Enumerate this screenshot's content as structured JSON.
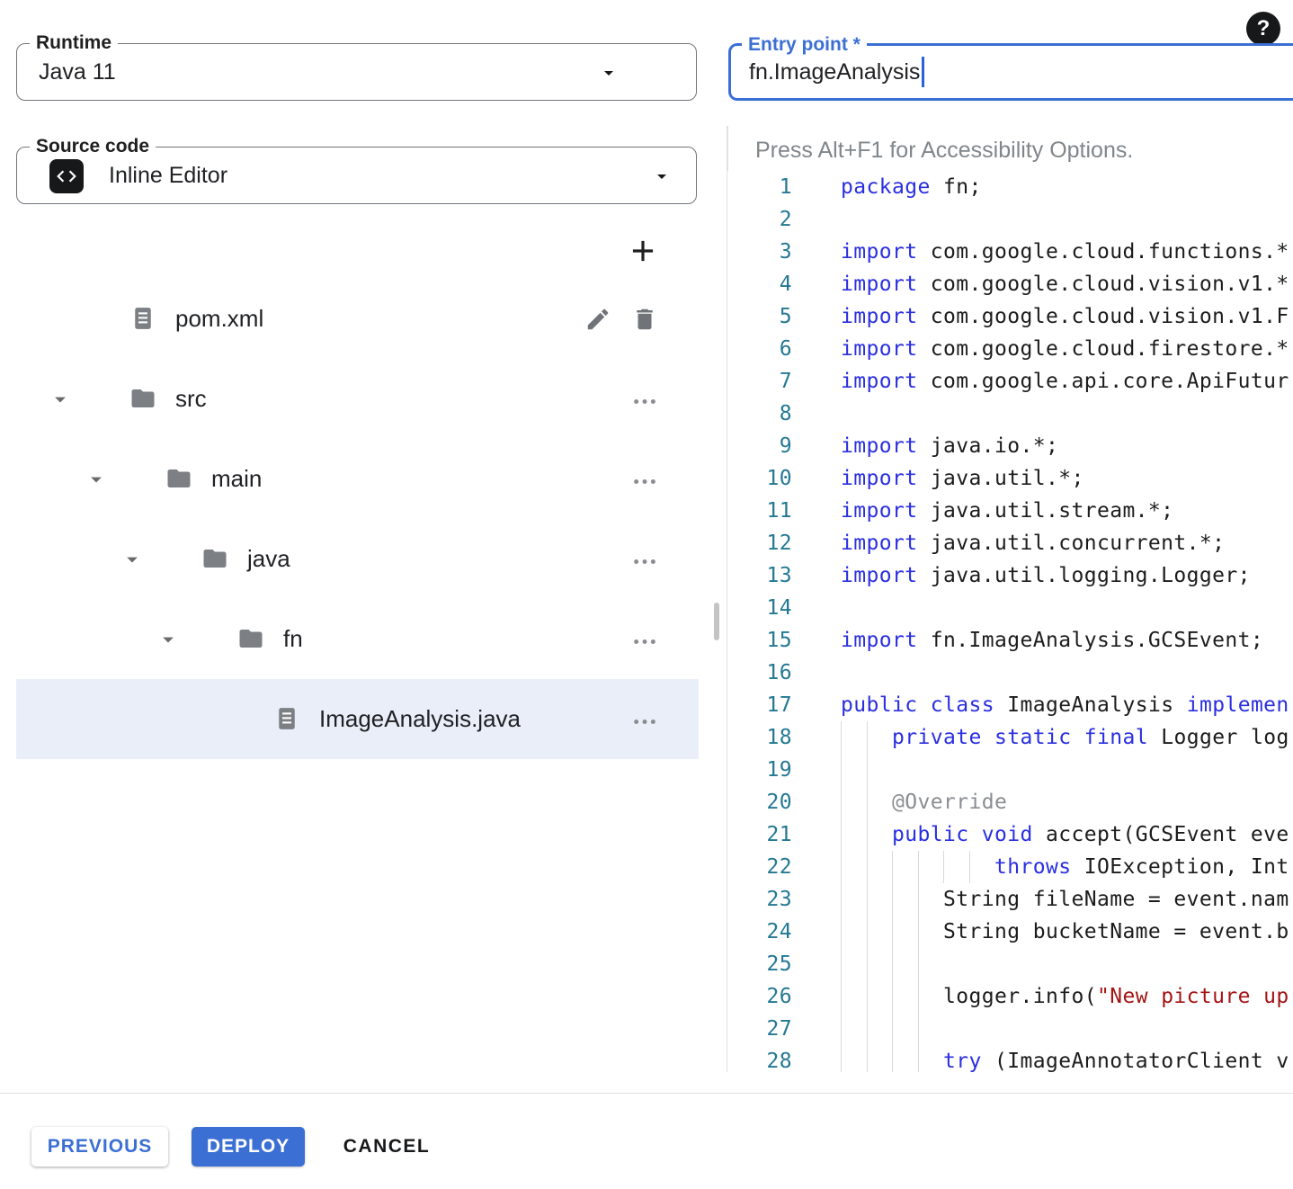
{
  "accent_color": "#3c6fd4",
  "runtime_field": {
    "label": "Runtime",
    "value": "Java 11"
  },
  "source_field": {
    "label": "Source code",
    "value": "Inline Editor"
  },
  "entry_point_field": {
    "label": "Entry point *",
    "value": "fn.ImageAnalysis"
  },
  "file_tree": {
    "items": [
      {
        "label": "pom.xml",
        "icon": "file-icon",
        "level": 0,
        "expanded": false,
        "actions": [
          "edit-pencil-icon",
          "delete-trash-icon"
        ],
        "selected": false
      },
      {
        "label": "src",
        "icon": "folder-icon",
        "level": 0,
        "expanded": true,
        "actions": [
          "more-options-icon"
        ],
        "selected": false
      },
      {
        "label": "main",
        "icon": "folder-icon",
        "level": 1,
        "expanded": true,
        "actions": [
          "more-options-icon"
        ],
        "selected": false
      },
      {
        "label": "java",
        "icon": "folder-icon",
        "level": 2,
        "expanded": true,
        "actions": [
          "more-options-icon"
        ],
        "selected": false
      },
      {
        "label": "fn",
        "icon": "folder-icon",
        "level": 3,
        "expanded": true,
        "actions": [
          "more-options-icon"
        ],
        "selected": false
      },
      {
        "label": "ImageAnalysis.java",
        "icon": "file-icon",
        "level": 4,
        "expanded": false,
        "actions": [
          "more-options-icon"
        ],
        "selected": true
      }
    ]
  },
  "editor": {
    "hint": "Press Alt+F1 for Accessibility Options.",
    "line_number_color": "#237893",
    "keyword_color": "#2a2fe0",
    "string_color": "#a31515",
    "lines": [
      {
        "n": 1,
        "segs": [
          [
            "k",
            "package"
          ],
          [
            "t",
            " fn;"
          ]
        ]
      },
      {
        "n": 2,
        "segs": []
      },
      {
        "n": 3,
        "segs": [
          [
            "k",
            "import"
          ],
          [
            "t",
            " com.google.cloud.functions.*"
          ]
        ]
      },
      {
        "n": 4,
        "segs": [
          [
            "k",
            "import"
          ],
          [
            "t",
            " com.google.cloud.vision.v1.*"
          ]
        ]
      },
      {
        "n": 5,
        "segs": [
          [
            "k",
            "import"
          ],
          [
            "t",
            " com.google.cloud.vision.v1.F"
          ]
        ]
      },
      {
        "n": 6,
        "segs": [
          [
            "k",
            "import"
          ],
          [
            "t",
            " com.google.cloud.firestore.*"
          ]
        ]
      },
      {
        "n": 7,
        "segs": [
          [
            "k",
            "import"
          ],
          [
            "t",
            " com.google.api.core.ApiFutur"
          ]
        ]
      },
      {
        "n": 8,
        "segs": []
      },
      {
        "n": 9,
        "segs": [
          [
            "k",
            "import"
          ],
          [
            "t",
            " java.io.*;"
          ]
        ]
      },
      {
        "n": 10,
        "segs": [
          [
            "k",
            "import"
          ],
          [
            "t",
            " java.util.*;"
          ]
        ]
      },
      {
        "n": 11,
        "segs": [
          [
            "k",
            "import"
          ],
          [
            "t",
            " java.util.stream.*;"
          ]
        ]
      },
      {
        "n": 12,
        "segs": [
          [
            "k",
            "import"
          ],
          [
            "t",
            " java.util.concurrent.*;"
          ]
        ]
      },
      {
        "n": 13,
        "segs": [
          [
            "k",
            "import"
          ],
          [
            "t",
            " java.util.logging.Logger;"
          ]
        ]
      },
      {
        "n": 14,
        "segs": []
      },
      {
        "n": 15,
        "segs": [
          [
            "k",
            "import"
          ],
          [
            "t",
            " fn.ImageAnalysis.GCSEvent;"
          ]
        ]
      },
      {
        "n": 16,
        "segs": []
      },
      {
        "n": 17,
        "segs": [
          [
            "k",
            "public"
          ],
          [
            "t",
            " "
          ],
          [
            "k",
            "class"
          ],
          [
            "t",
            " ImageAnalysis "
          ],
          [
            "k",
            "implemen"
          ]
        ]
      },
      {
        "n": 18,
        "segs": [
          [
            "t",
            "    "
          ],
          [
            "k",
            "private"
          ],
          [
            "t",
            " "
          ],
          [
            "k",
            "static"
          ],
          [
            "t",
            " "
          ],
          [
            "k",
            "final"
          ],
          [
            "t",
            " Logger log"
          ]
        ]
      },
      {
        "n": 19,
        "segs": []
      },
      {
        "n": 20,
        "segs": [
          [
            "t",
            "    "
          ],
          [
            "a",
            "@Override"
          ]
        ]
      },
      {
        "n": 21,
        "segs": [
          [
            "t",
            "    "
          ],
          [
            "k",
            "public"
          ],
          [
            "t",
            " "
          ],
          [
            "k",
            "void"
          ],
          [
            "t",
            " accept(GCSEvent eve"
          ]
        ]
      },
      {
        "n": 22,
        "segs": [
          [
            "t",
            "            "
          ],
          [
            "k",
            "throws"
          ],
          [
            "t",
            " IOException, Int"
          ]
        ]
      },
      {
        "n": 23,
        "segs": [
          [
            "t",
            "        String fileName = event.nam"
          ]
        ]
      },
      {
        "n": 24,
        "segs": [
          [
            "t",
            "        String bucketName = event.b"
          ]
        ]
      },
      {
        "n": 25,
        "segs": []
      },
      {
        "n": 26,
        "segs": [
          [
            "t",
            "        logger.info("
          ],
          [
            "s",
            "\"New picture up"
          ]
        ]
      },
      {
        "n": 27,
        "segs": []
      },
      {
        "n": 28,
        "segs": [
          [
            "t",
            "        "
          ],
          [
            "k",
            "try"
          ],
          [
            "t",
            " (ImageAnnotatorClient v"
          ]
        ]
      }
    ]
  },
  "footer": {
    "previous": "PREVIOUS",
    "deploy": "DEPLOY",
    "cancel": "CANCEL"
  },
  "icons": [
    "help-icon",
    "caret-down-icon",
    "code-icon",
    "add-icon",
    "file-icon",
    "folder-icon",
    "expand-arrow-icon",
    "edit-pencil-icon",
    "delete-trash-icon",
    "more-options-icon"
  ]
}
